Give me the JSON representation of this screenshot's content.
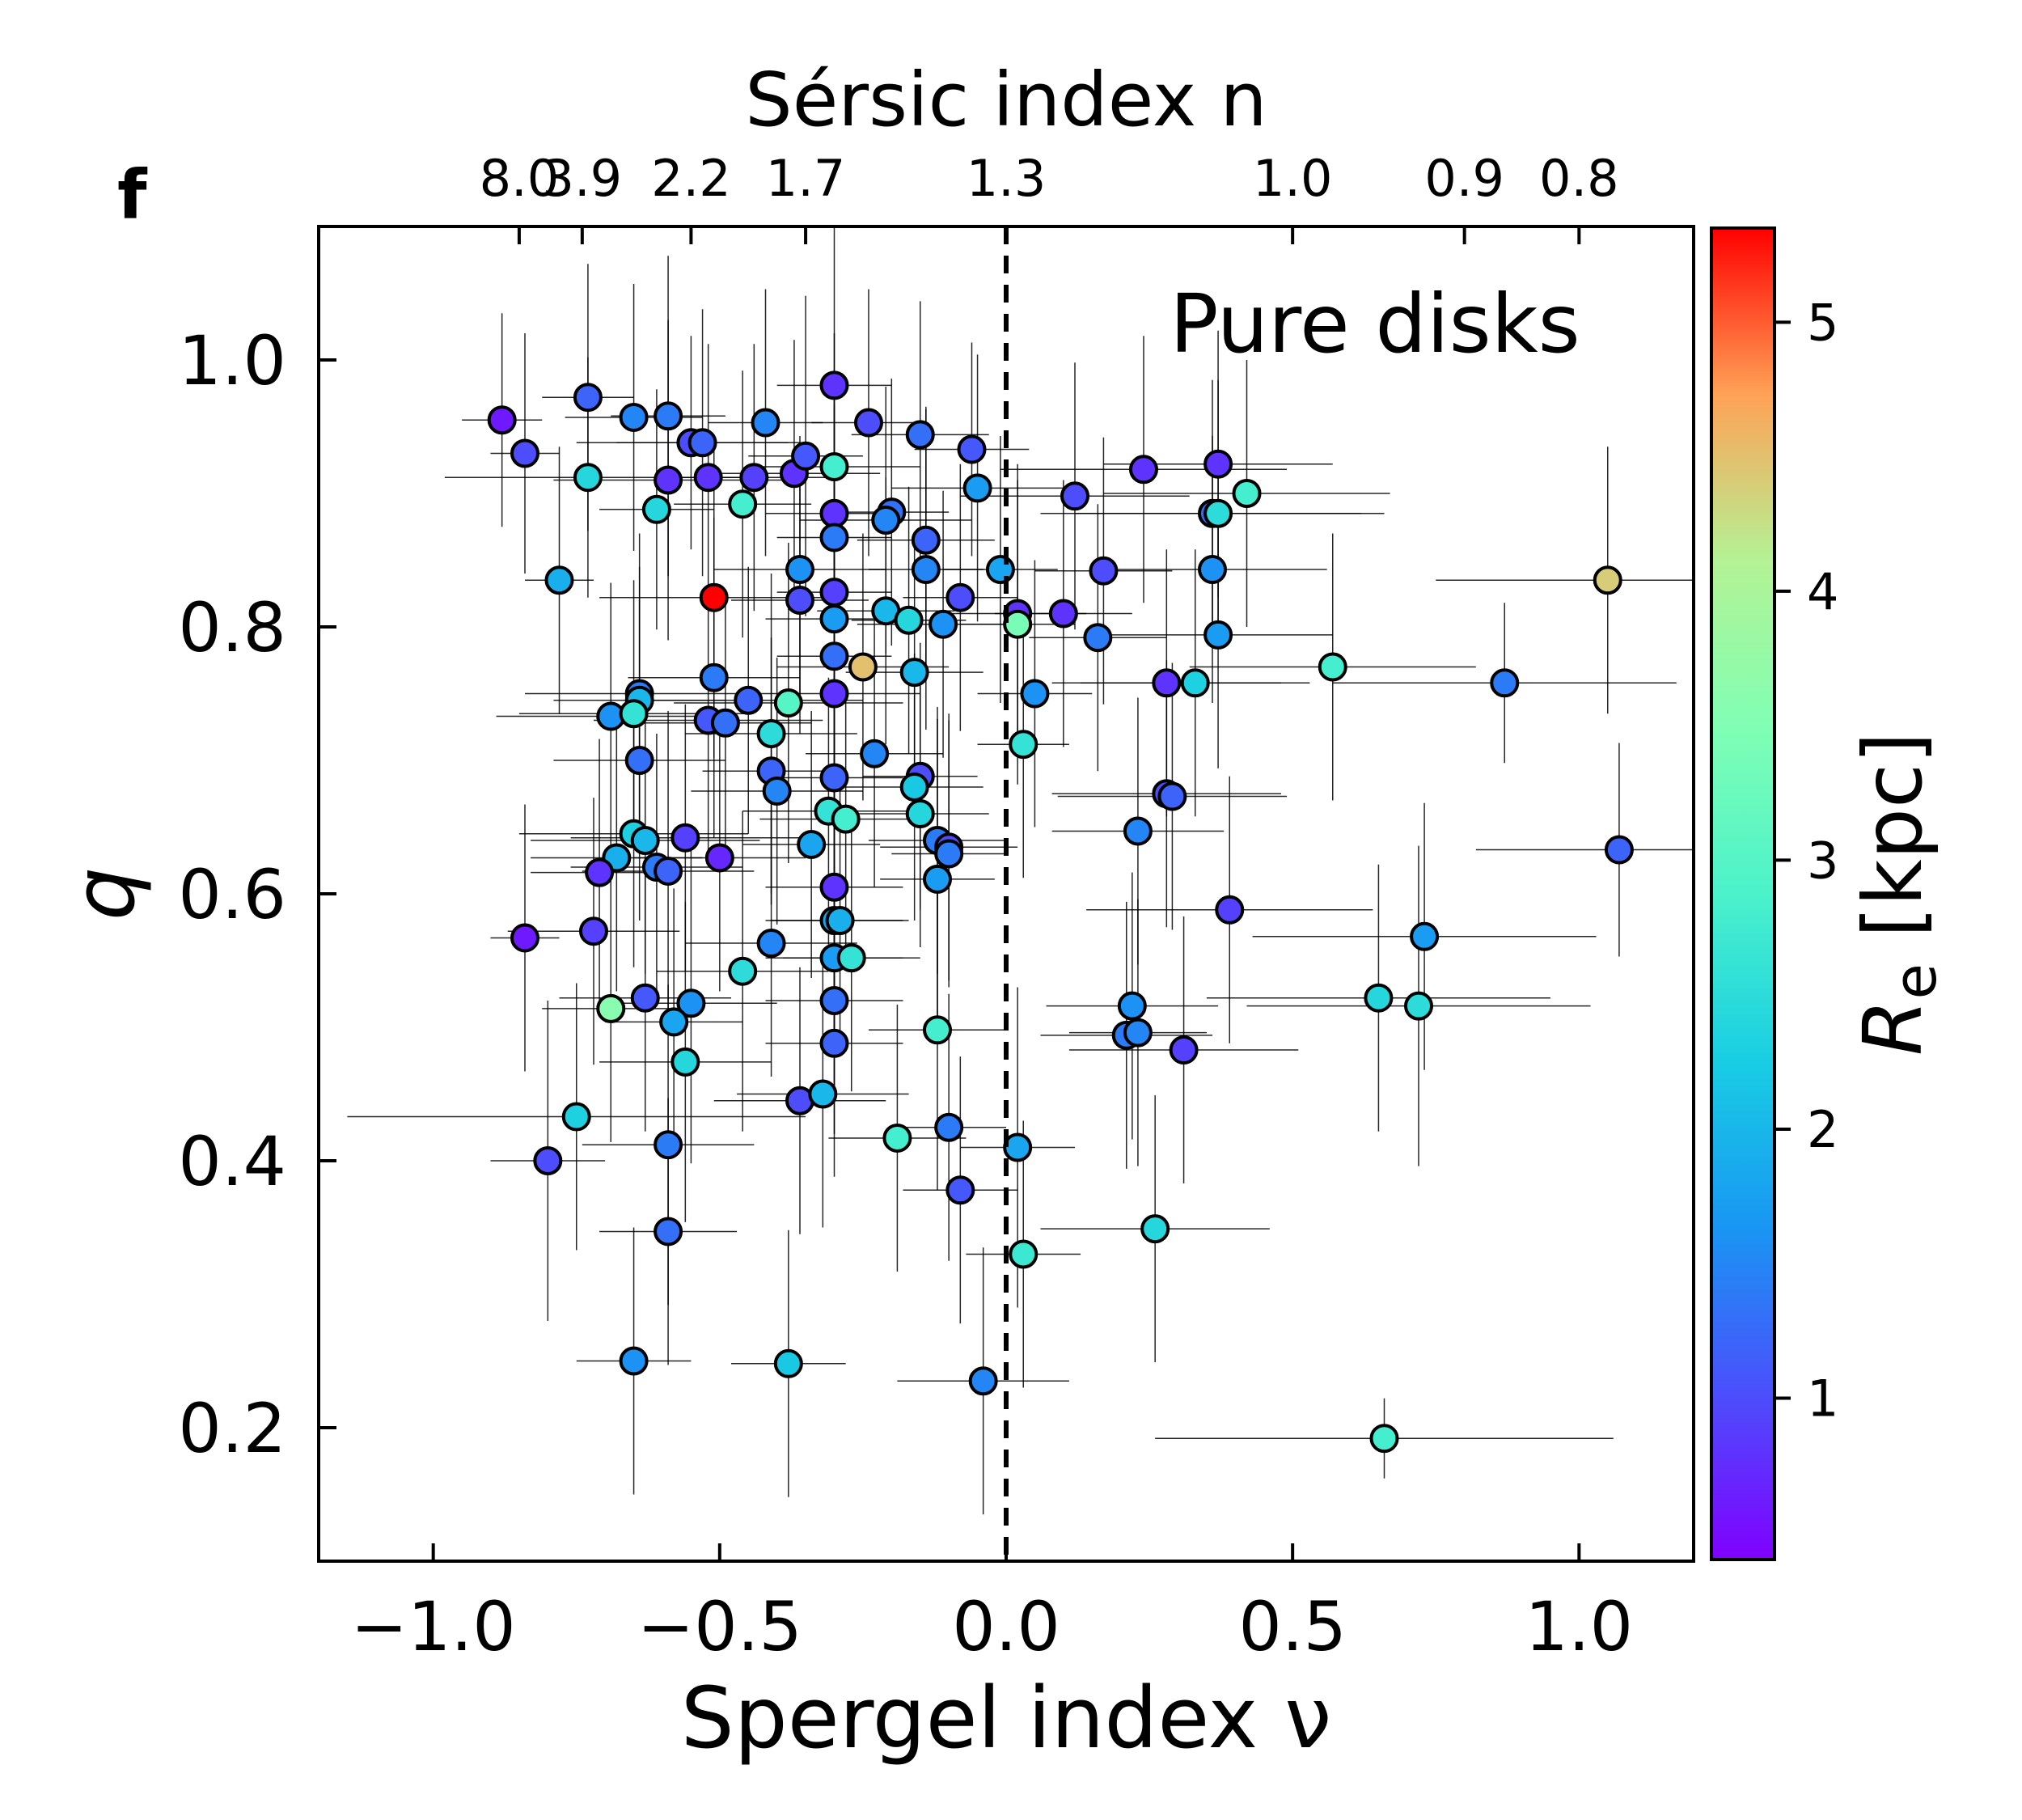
{
  "chart_data": {
    "type": "scatter",
    "panel_label": "f",
    "title": "",
    "annotation": "Pure disks",
    "xlabel": "Spergel index ν",
    "ylabel": "q",
    "top_axis_label": "Sérsic index n",
    "top_axis_ticks": [
      {
        "nu": -0.85,
        "label": "8.0"
      },
      {
        "nu": -0.74,
        "label": "3.9"
      },
      {
        "nu": -0.55,
        "label": "2.2"
      },
      {
        "nu": -0.35,
        "label": "1.7"
      },
      {
        "nu": 0.0,
        "label": "1.3"
      },
      {
        "nu": 0.5,
        "label": "1.0"
      },
      {
        "nu": 0.8,
        "label": "0.9"
      },
      {
        "nu": 1.0,
        "label": "0.8"
      }
    ],
    "xlim": [
      -1.2,
      1.2
    ],
    "ylim": [
      0.1,
      1.1
    ],
    "x_ticks": [
      {
        "value": -1.0,
        "label": "−1.0"
      },
      {
        "value": -0.5,
        "label": "−0.5"
      },
      {
        "value": 0.0,
        "label": "0.0"
      },
      {
        "value": 0.5,
        "label": "0.5"
      },
      {
        "value": 1.0,
        "label": "1.0"
      }
    ],
    "y_ticks": [
      {
        "value": 0.2,
        "label": "0.2"
      },
      {
        "value": 0.4,
        "label": "0.4"
      },
      {
        "value": 0.6,
        "label": "0.6"
      },
      {
        "value": 0.8,
        "label": "0.8"
      },
      {
        "value": 1.0,
        "label": "1.0"
      }
    ],
    "reference_line": {
      "x": 0.0,
      "style": "dashed"
    },
    "colorbar": {
      "label": "R_e [kpc]",
      "label_main": "R",
      "label_sub": "e",
      "label_rest": " [kpc]",
      "range": [
        0.4,
        5.35
      ],
      "colormap": "rainbow",
      "ticks": [
        {
          "value": 1,
          "label": "1"
        },
        {
          "value": 2,
          "label": "2"
        },
        {
          "value": 3,
          "label": "3"
        },
        {
          "value": 4,
          "label": "4"
        },
        {
          "value": 5,
          "label": "5"
        }
      ]
    },
    "grid": false,
    "points": [
      {
        "x": -0.88,
        "y": 0.955,
        "c": 0.6,
        "ex": 0.07,
        "ey": 0.08
      },
      {
        "x": -0.84,
        "y": 0.93,
        "c": 1.0,
        "ex": 0.06,
        "ey": 0.09
      },
      {
        "x": -0.73,
        "y": 0.972,
        "c": 1.2,
        "ex": 0.08,
        "ey": 0.1
      },
      {
        "x": -0.73,
        "y": 0.912,
        "c": 2.4,
        "ex": 0.25,
        "ey": 0.09
      },
      {
        "x": -0.78,
        "y": 0.835,
        "c": 1.9,
        "ex": 0.06,
        "ey": 0.1
      },
      {
        "x": -0.65,
        "y": 0.957,
        "c": 1.5,
        "ex": 0.12,
        "ey": 0.1
      },
      {
        "x": -0.59,
        "y": 0.958,
        "c": 1.4,
        "ex": 0.1,
        "ey": 0.12
      },
      {
        "x": -0.55,
        "y": 0.938,
        "c": 1.0,
        "ex": 0.2,
        "ey": 0.08
      },
      {
        "x": -0.53,
        "y": 0.938,
        "c": 1.2,
        "ex": 0.15,
        "ey": 0.1
      },
      {
        "x": -0.59,
        "y": 0.91,
        "c": 0.8,
        "ex": 0.2,
        "ey": 0.12
      },
      {
        "x": -0.61,
        "y": 0.888,
        "c": 2.4,
        "ex": 0.1,
        "ey": 0.09
      },
      {
        "x": -0.52,
        "y": 0.912,
        "c": 0.8,
        "ex": 0.08,
        "ey": 0.1
      },
      {
        "x": -0.44,
        "y": 0.912,
        "c": 0.9,
        "ex": 0.15,
        "ey": 0.1
      },
      {
        "x": -0.46,
        "y": 0.892,
        "c": 2.8,
        "ex": 0.12,
        "ey": 0.1
      },
      {
        "x": -0.42,
        "y": 0.953,
        "c": 1.5,
        "ex": 0.1,
        "ey": 0.1
      },
      {
        "x": -0.37,
        "y": 0.915,
        "c": 0.8,
        "ex": 0.15,
        "ey": 0.1
      },
      {
        "x": -0.35,
        "y": 0.928,
        "c": 1.1,
        "ex": 0.1,
        "ey": 0.12
      },
      {
        "x": -0.3,
        "y": 0.981,
        "c": 0.8,
        "ex": 0.1,
        "ey": 0.12
      },
      {
        "x": -0.3,
        "y": 0.92,
        "c": 2.8,
        "ex": 0.15,
        "ey": 0.1
      },
      {
        "x": -0.3,
        "y": 0.885,
        "c": 0.8,
        "ex": 0.12,
        "ey": 0.1
      },
      {
        "x": -0.3,
        "y": 0.867,
        "c": 1.4,
        "ex": 0.1,
        "ey": 0.1
      },
      {
        "x": -0.24,
        "y": 0.953,
        "c": 1.0,
        "ex": 0.1,
        "ey": 0.1
      },
      {
        "x": -0.15,
        "y": 0.944,
        "c": 1.3,
        "ex": 0.12,
        "ey": 0.1
      },
      {
        "x": -0.06,
        "y": 0.933,
        "c": 1.1,
        "ex": 0.1,
        "ey": 0.08
      },
      {
        "x": -0.05,
        "y": 0.904,
        "c": 1.7,
        "ex": 0.15,
        "ey": 0.1
      },
      {
        "x": -0.2,
        "y": 0.886,
        "c": 1.3,
        "ex": 0.1,
        "ey": 0.1
      },
      {
        "x": -0.21,
        "y": 0.88,
        "c": 1.5,
        "ex": 0.15,
        "ey": 0.1
      },
      {
        "x": -0.14,
        "y": 0.865,
        "c": 1.2,
        "ex": 0.12,
        "ey": 0.1
      },
      {
        "x": -0.14,
        "y": 0.843,
        "c": 1.5,
        "ex": 0.1,
        "ey": 0.12
      },
      {
        "x": -0.01,
        "y": 0.843,
        "c": 1.8,
        "ex": 0.1,
        "ey": 0.1
      },
      {
        "x": -0.36,
        "y": 0.843,
        "c": 1.6,
        "ex": 0.15,
        "ey": 0.1
      },
      {
        "x": -0.36,
        "y": 0.82,
        "c": 1.0,
        "ex": 0.12,
        "ey": 0.1
      },
      {
        "x": -0.3,
        "y": 0.826,
        "c": 0.9,
        "ex": 0.1,
        "ey": 0.1
      },
      {
        "x": -0.3,
        "y": 0.806,
        "c": 1.7,
        "ex": 0.12,
        "ey": 0.12
      },
      {
        "x": -0.51,
        "y": 0.822,
        "c": 5.35,
        "ex": 0.2,
        "ey": 0.12
      },
      {
        "x": -0.21,
        "y": 0.812,
        "c": 2.0,
        "ex": 0.12,
        "ey": 0.1
      },
      {
        "x": -0.17,
        "y": 0.805,
        "c": 2.4,
        "ex": 0.1,
        "ey": 0.1
      },
      {
        "x": -0.11,
        "y": 0.802,
        "c": 1.6,
        "ex": 0.15,
        "ey": 0.1
      },
      {
        "x": -0.08,
        "y": 0.822,
        "c": 1.0,
        "ex": 0.1,
        "ey": 0.1
      },
      {
        "x": 0.02,
        "y": 0.81,
        "c": 0.8,
        "ex": 0.12,
        "ey": 0.1
      },
      {
        "x": 0.02,
        "y": 0.802,
        "c": 3.4,
        "ex": 0.1,
        "ey": 0.12
      },
      {
        "x": 0.1,
        "y": 0.81,
        "c": 0.8,
        "ex": 0.12,
        "ey": 0.1
      },
      {
        "x": 0.12,
        "y": 0.898,
        "c": 1.0,
        "ex": 0.2,
        "ey": 0.1
      },
      {
        "x": 0.24,
        "y": 0.918,
        "c": 0.8,
        "ex": 0.25,
        "ey": 0.1
      },
      {
        "x": 0.37,
        "y": 0.922,
        "c": 0.8,
        "ex": 0.2,
        "ey": 0.1
      },
      {
        "x": 0.36,
        "y": 0.885,
        "c": 1.3,
        "ex": 0.3,
        "ey": 0.1
      },
      {
        "x": 0.37,
        "y": 0.885,
        "c": 2.5,
        "ex": 0.25,
        "ey": 0.1
      },
      {
        "x": 0.42,
        "y": 0.9,
        "c": 2.8,
        "ex": 0.25,
        "ey": 0.1
      },
      {
        "x": 0.17,
        "y": 0.842,
        "c": 1.0,
        "ex": 0.12,
        "ey": 0.1
      },
      {
        "x": 0.36,
        "y": 0.843,
        "c": 1.6,
        "ex": 0.2,
        "ey": 0.1
      },
      {
        "x": 0.16,
        "y": 0.792,
        "c": 1.4,
        "ex": 0.12,
        "ey": 0.1
      },
      {
        "x": 0.37,
        "y": 0.794,
        "c": 1.7,
        "ex": 0.2,
        "ey": 0.1
      },
      {
        "x": 1.05,
        "y": 0.835,
        "c": 4.4,
        "ex": 0.3,
        "ey": 0.1
      },
      {
        "x": -0.51,
        "y": 0.762,
        "c": 1.4,
        "ex": 0.15,
        "ey": 0.12
      },
      {
        "x": -0.45,
        "y": 0.745,
        "c": 1.2,
        "ex": 0.2,
        "ey": 0.1
      },
      {
        "x": -0.38,
        "y": 0.743,
        "c": 3.0,
        "ex": 0.2,
        "ey": 0.12
      },
      {
        "x": -0.25,
        "y": 0.77,
        "c": 4.5,
        "ex": 0.15,
        "ey": 0.1
      },
      {
        "x": -0.3,
        "y": 0.778,
        "c": 1.3,
        "ex": 0.1,
        "ey": 0.12
      },
      {
        "x": -0.3,
        "y": 0.75,
        "c": 0.8,
        "ex": 0.15,
        "ey": 0.1
      },
      {
        "x": -0.16,
        "y": 0.766,
        "c": 2.0,
        "ex": 0.12,
        "ey": 0.1
      },
      {
        "x": -0.69,
        "y": 0.733,
        "c": 1.6,
        "ex": 0.2,
        "ey": 0.1
      },
      {
        "x": -0.64,
        "y": 0.75,
        "c": 1.4,
        "ex": 0.2,
        "ey": 0.12
      },
      {
        "x": -0.64,
        "y": 0.745,
        "c": 2.0,
        "ex": 0.15,
        "ey": 0.1
      },
      {
        "x": -0.65,
        "y": 0.735,
        "c": 2.6,
        "ex": 0.2,
        "ey": 0.1
      },
      {
        "x": -0.52,
        "y": 0.73,
        "c": 1.1,
        "ex": 0.2,
        "ey": 0.1
      },
      {
        "x": -0.49,
        "y": 0.728,
        "c": 1.3,
        "ex": 0.15,
        "ey": 0.1
      },
      {
        "x": -0.41,
        "y": 0.72,
        "c": 2.5,
        "ex": 0.15,
        "ey": 0.12
      },
      {
        "x": -0.23,
        "y": 0.705,
        "c": 1.5,
        "ex": 0.12,
        "ey": 0.1
      },
      {
        "x": -0.64,
        "y": 0.7,
        "c": 1.3,
        "ex": 0.15,
        "ey": 0.12
      },
      {
        "x": -0.41,
        "y": 0.692,
        "c": 1.2,
        "ex": 0.12,
        "ey": 0.1
      },
      {
        "x": -0.4,
        "y": 0.677,
        "c": 1.5,
        "ex": 0.15,
        "ey": 0.1
      },
      {
        "x": -0.3,
        "y": 0.687,
        "c": 1.2,
        "ex": 0.12,
        "ey": 0.12
      },
      {
        "x": -0.15,
        "y": 0.688,
        "c": 1.0,
        "ex": 0.1,
        "ey": 0.1
      },
      {
        "x": -0.16,
        "y": 0.68,
        "c": 2.2,
        "ex": 0.12,
        "ey": 0.1
      },
      {
        "x": -0.31,
        "y": 0.662,
        "c": 2.6,
        "ex": 0.15,
        "ey": 0.1
      },
      {
        "x": -0.28,
        "y": 0.656,
        "c": 2.8,
        "ex": 0.15,
        "ey": 0.1
      },
      {
        "x": -0.15,
        "y": 0.66,
        "c": 2.4,
        "ex": 0.12,
        "ey": 0.1
      },
      {
        "x": -0.12,
        "y": 0.64,
        "c": 1.4,
        "ex": 0.12,
        "ey": 0.1
      },
      {
        "x": -0.1,
        "y": 0.635,
        "c": 1.0,
        "ex": 0.12,
        "ey": 0.1
      },
      {
        "x": -0.1,
        "y": 0.63,
        "c": 1.4,
        "ex": 0.1,
        "ey": 0.1
      },
      {
        "x": -0.34,
        "y": 0.637,
        "c": 1.8,
        "ex": 0.12,
        "ey": 0.1
      },
      {
        "x": -0.12,
        "y": 0.611,
        "c": 1.7,
        "ex": 0.1,
        "ey": 0.12
      },
      {
        "x": 0.03,
        "y": 0.712,
        "c": 2.6,
        "ex": 0.08,
        "ey": 0.1
      },
      {
        "x": 0.05,
        "y": 0.75,
        "c": 1.6,
        "ex": 0.1,
        "ey": 0.1
      },
      {
        "x": 0.28,
        "y": 0.758,
        "c": 0.8,
        "ex": 0.2,
        "ey": 0.1
      },
      {
        "x": 0.33,
        "y": 0.758,
        "c": 2.3,
        "ex": 0.2,
        "ey": 0.1
      },
      {
        "x": 0.57,
        "y": 0.77,
        "c": 2.8,
        "ex": 0.25,
        "ey": 0.1
      },
      {
        "x": 0.87,
        "y": 0.758,
        "c": 1.4,
        "ex": 0.3,
        "ey": 0.06
      },
      {
        "x": 0.28,
        "y": 0.675,
        "c": 1.0,
        "ex": 0.2,
        "ey": 0.1
      },
      {
        "x": 0.29,
        "y": 0.673,
        "c": 1.2,
        "ex": 0.2,
        "ey": 0.1
      },
      {
        "x": 0.23,
        "y": 0.647,
        "c": 1.5,
        "ex": 0.15,
        "ey": 0.1
      },
      {
        "x": 1.07,
        "y": 0.633,
        "c": 1.2,
        "ex": 0.25,
        "ey": 0.08
      },
      {
        "x": -0.65,
        "y": 0.645,
        "c": 2.3,
        "ex": 0.2,
        "ey": 0.1
      },
      {
        "x": -0.63,
        "y": 0.64,
        "c": 2.0,
        "ex": 0.2,
        "ey": 0.1
      },
      {
        "x": -0.68,
        "y": 0.627,
        "c": 1.9,
        "ex": 0.15,
        "ey": 0.1
      },
      {
        "x": -0.61,
        "y": 0.62,
        "c": 1.4,
        "ex": 0.15,
        "ey": 0.1
      },
      {
        "x": -0.59,
        "y": 0.617,
        "c": 1.2,
        "ex": 0.15,
        "ey": 0.12
      },
      {
        "x": -0.71,
        "y": 0.616,
        "c": 0.8,
        "ex": 0.12,
        "ey": 0.1
      },
      {
        "x": -0.56,
        "y": 0.642,
        "c": 0.9,
        "ex": 0.2,
        "ey": 0.1
      },
      {
        "x": -0.5,
        "y": 0.627,
        "c": 0.7,
        "ex": 0.15,
        "ey": 0.1
      },
      {
        "x": -0.3,
        "y": 0.605,
        "c": 0.8,
        "ex": 0.12,
        "ey": 0.12
      },
      {
        "x": -0.84,
        "y": 0.567,
        "c": 0.6,
        "ex": 0.06,
        "ey": 0.1
      },
      {
        "x": -0.72,
        "y": 0.572,
        "c": 0.9,
        "ex": 0.15,
        "ey": 0.1
      },
      {
        "x": -0.41,
        "y": 0.563,
        "c": 1.5,
        "ex": 0.15,
        "ey": 0.1
      },
      {
        "x": -0.3,
        "y": 0.58,
        "c": 1.8,
        "ex": 0.12,
        "ey": 0.1
      },
      {
        "x": -0.29,
        "y": 0.58,
        "c": 1.9,
        "ex": 0.12,
        "ey": 0.1
      },
      {
        "x": -0.3,
        "y": 0.552,
        "c": 1.7,
        "ex": 0.12,
        "ey": 0.1
      },
      {
        "x": -0.27,
        "y": 0.552,
        "c": 2.6,
        "ex": 0.12,
        "ey": 0.1
      },
      {
        "x": -0.46,
        "y": 0.542,
        "c": 2.5,
        "ex": 0.15,
        "ey": 0.12
      },
      {
        "x": -0.3,
        "y": 0.52,
        "c": 1.3,
        "ex": 0.12,
        "ey": 0.1
      },
      {
        "x": 0.39,
        "y": 0.588,
        "c": 0.9,
        "ex": 0.25,
        "ey": 0.1
      },
      {
        "x": 0.73,
        "y": 0.568,
        "c": 1.7,
        "ex": 0.3,
        "ey": 0.1
      },
      {
        "x": -0.69,
        "y": 0.514,
        "c": 3.6,
        "ex": 0.12,
        "ey": 0.1
      },
      {
        "x": -0.63,
        "y": 0.522,
        "c": 1.1,
        "ex": 0.15,
        "ey": 0.1
      },
      {
        "x": -0.55,
        "y": 0.518,
        "c": 1.6,
        "ex": 0.15,
        "ey": 0.12
      },
      {
        "x": -0.58,
        "y": 0.504,
        "c": 1.8,
        "ex": 0.12,
        "ey": 0.1
      },
      {
        "x": -0.56,
        "y": 0.474,
        "c": 2.4,
        "ex": 0.15,
        "ey": 0.12
      },
      {
        "x": -0.3,
        "y": 0.488,
        "c": 1.2,
        "ex": 0.12,
        "ey": 0.1
      },
      {
        "x": -0.12,
        "y": 0.498,
        "c": 2.8,
        "ex": 0.12,
        "ey": 0.12
      },
      {
        "x": 0.22,
        "y": 0.516,
        "c": 1.6,
        "ex": 0.15,
        "ey": 0.1
      },
      {
        "x": 0.21,
        "y": 0.494,
        "c": 1.4,
        "ex": 0.15,
        "ey": 0.1
      },
      {
        "x": 0.23,
        "y": 0.496,
        "c": 1.5,
        "ex": 0.12,
        "ey": 0.1
      },
      {
        "x": 0.31,
        "y": 0.483,
        "c": 0.9,
        "ex": 0.2,
        "ey": 0.1
      },
      {
        "x": 0.65,
        "y": 0.522,
        "c": 2.4,
        "ex": 0.3,
        "ey": 0.1
      },
      {
        "x": 0.72,
        "y": 0.516,
        "c": 2.5,
        "ex": 0.3,
        "ey": 0.12
      },
      {
        "x": -0.75,
        "y": 0.433,
        "c": 2.3,
        "ex": 0.4,
        "ey": 0.1
      },
      {
        "x": -0.36,
        "y": 0.445,
        "c": 1.0,
        "ex": 0.15,
        "ey": 0.1
      },
      {
        "x": -0.32,
        "y": 0.45,
        "c": 2.0,
        "ex": 0.15,
        "ey": 0.1
      },
      {
        "x": -0.59,
        "y": 0.412,
        "c": 1.4,
        "ex": 0.15,
        "ey": 0.12
      },
      {
        "x": -0.8,
        "y": 0.4,
        "c": 1.0,
        "ex": 0.1,
        "ey": 0.12
      },
      {
        "x": -0.19,
        "y": 0.417,
        "c": 2.8,
        "ex": 0.12,
        "ey": 0.1
      },
      {
        "x": -0.1,
        "y": 0.425,
        "c": 1.4,
        "ex": 0.1,
        "ey": 0.1
      },
      {
        "x": -0.08,
        "y": 0.378,
        "c": 1.1,
        "ex": 0.1,
        "ey": 0.1
      },
      {
        "x": 0.02,
        "y": 0.41,
        "c": 1.8,
        "ex": 0.1,
        "ey": 0.12
      },
      {
        "x": -0.59,
        "y": 0.347,
        "c": 1.3,
        "ex": 0.12,
        "ey": 0.1
      },
      {
        "x": 0.26,
        "y": 0.349,
        "c": 2.4,
        "ex": 0.2,
        "ey": 0.1
      },
      {
        "x": 0.03,
        "y": 0.33,
        "c": 2.7,
        "ex": 0.1,
        "ey": 0.1
      },
      {
        "x": -0.65,
        "y": 0.25,
        "c": 1.6,
        "ex": 0.1,
        "ey": 0.1
      },
      {
        "x": -0.38,
        "y": 0.248,
        "c": 2.2,
        "ex": 0.1,
        "ey": 0.1
      },
      {
        "x": -0.04,
        "y": 0.235,
        "c": 1.5,
        "ex": 0.15,
        "ey": 0.1
      },
      {
        "x": 0.66,
        "y": 0.192,
        "c": 2.8,
        "ex": 0.4,
        "ey": 0.03
      }
    ]
  }
}
